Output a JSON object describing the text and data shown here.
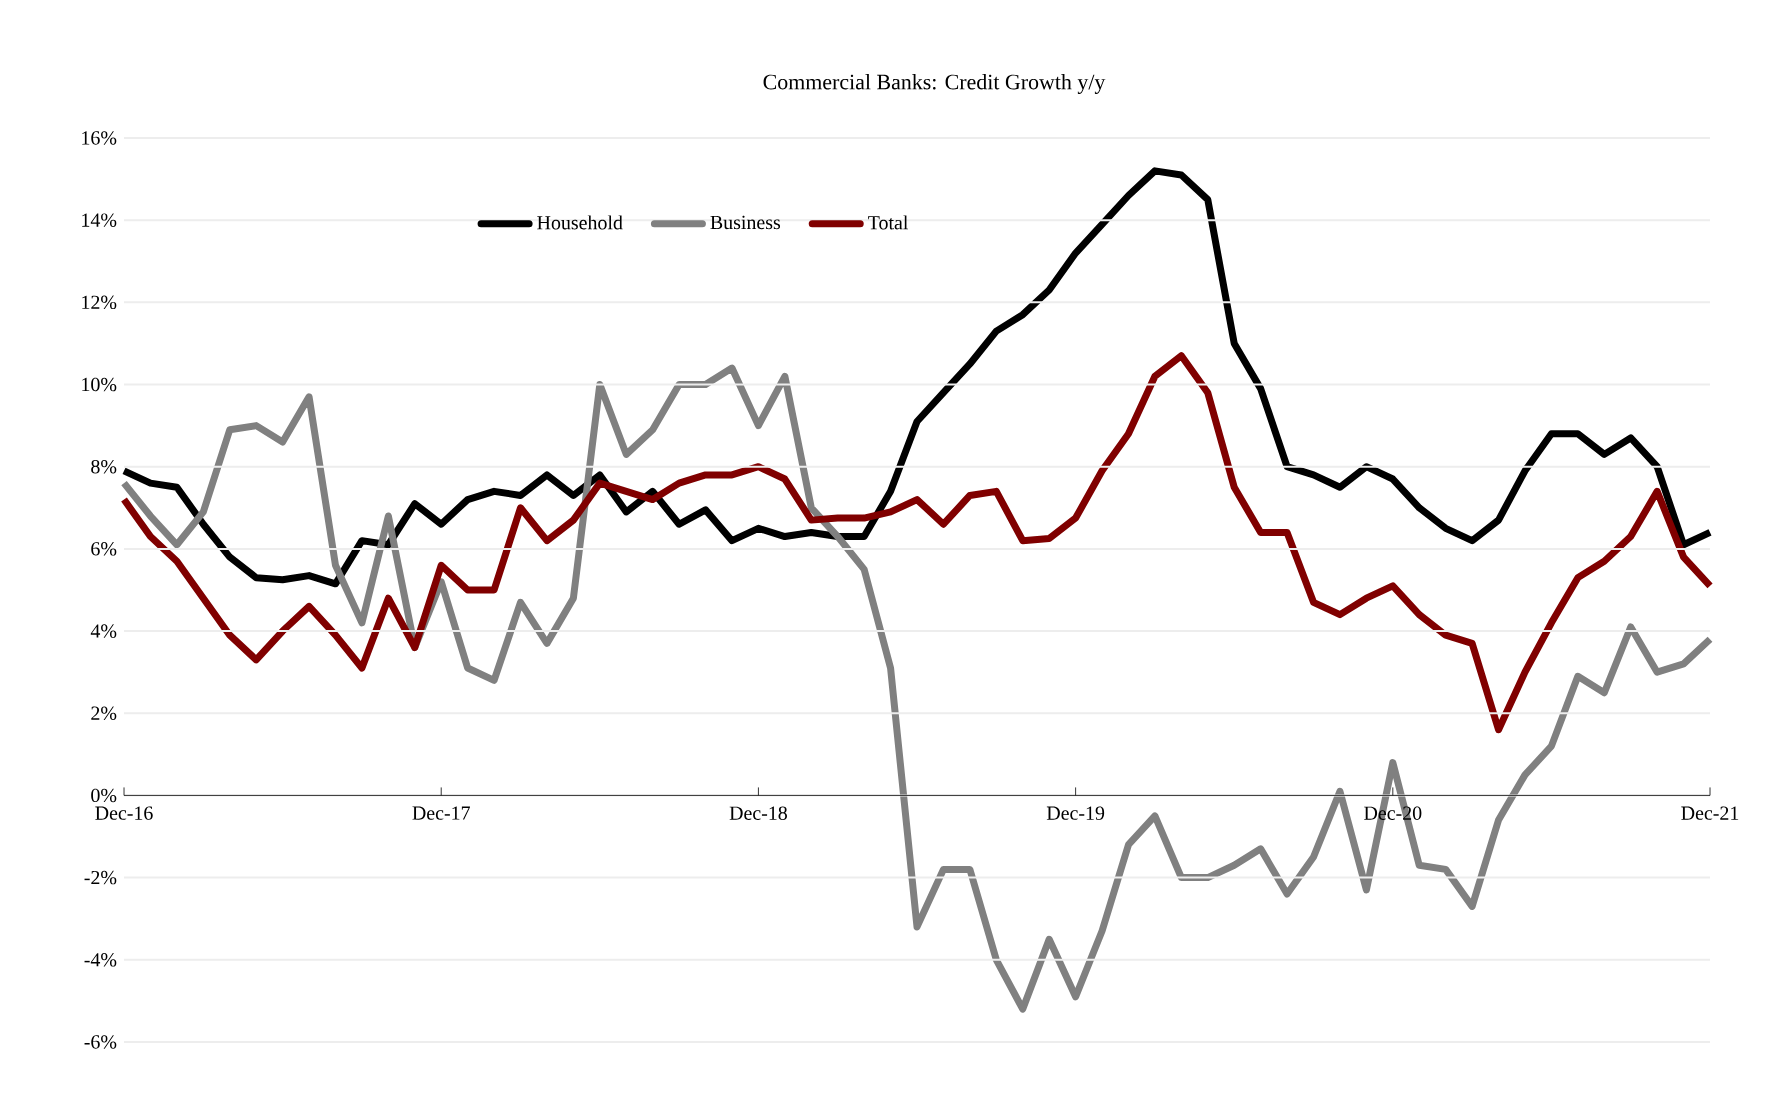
{
  "chart_data": {
    "type": "line",
    "title": "Commercial Banks: Credit Growth y/y",
    "x": [
      "2016-12",
      "2017-01",
      "2017-02",
      "2017-03",
      "2017-04",
      "2017-05",
      "2017-06",
      "2017-07",
      "2017-08",
      "2017-09",
      "2017-10",
      "2017-11",
      "2017-12",
      "2018-01",
      "2018-02",
      "2018-03",
      "2018-04",
      "2018-05",
      "2018-06",
      "2018-07",
      "2018-08",
      "2018-09",
      "2018-10",
      "2018-11",
      "2018-12",
      "2019-01",
      "2019-02",
      "2019-03",
      "2019-04",
      "2019-05",
      "2019-06",
      "2019-07",
      "2019-08",
      "2019-09",
      "2019-10",
      "2019-11",
      "2019-12",
      "2020-01",
      "2020-02",
      "2020-03",
      "2020-04",
      "2020-05",
      "2020-06",
      "2020-07",
      "2020-08",
      "2020-09",
      "2020-10",
      "2020-11",
      "2020-12",
      "2021-01",
      "2021-02",
      "2021-03",
      "2021-04",
      "2021-05",
      "2021-06",
      "2021-07",
      "2021-08",
      "2021-09",
      "2021-10",
      "2021-11",
      "2021-12"
    ],
    "series": [
      {
        "name": "Household",
        "color": "#000000",
        "values": [
          7.9,
          7.6,
          7.5,
          6.6,
          5.8,
          5.3,
          5.25,
          5.35,
          5.15,
          6.2,
          6.1,
          7.1,
          6.6,
          7.2,
          7.4,
          7.3,
          7.8,
          7.3,
          7.8,
          6.9,
          7.4,
          6.6,
          6.95,
          6.2,
          6.5,
          6.3,
          6.4,
          6.3,
          6.3,
          7.4,
          9.1,
          9.8,
          10.5,
          11.3,
          11.7,
          12.3,
          13.2,
          13.9,
          14.6,
          15.2,
          15.1,
          14.5,
          11.0,
          9.9,
          8.0,
          7.8,
          7.5,
          8.0,
          7.7,
          7.0,
          6.5,
          6.2,
          6.7,
          7.9,
          8.8,
          8.8,
          8.3,
          8.7,
          8.0,
          6.1,
          6.4
        ]
      },
      {
        "name": "Business",
        "color": "#808080",
        "values": [
          7.6,
          6.8,
          6.1,
          6.9,
          8.9,
          9.0,
          8.6,
          9.7,
          5.6,
          4.2,
          6.8,
          3.6,
          5.2,
          3.1,
          2.8,
          4.7,
          3.7,
          4.8,
          10.0,
          8.3,
          8.9,
          10.0,
          10.0,
          10.4,
          9.0,
          10.2,
          7.0,
          6.3,
          5.5,
          3.1,
          -3.2,
          -1.8,
          -1.8,
          -4.0,
          -5.2,
          -3.5,
          -4.9,
          -3.3,
          -1.2,
          -0.5,
          -2.0,
          -2.0,
          -1.7,
          -1.3,
          -2.4,
          -1.5,
          0.1,
          -2.3,
          0.8,
          -1.7,
          -1.8,
          -2.7,
          -0.6,
          0.5,
          1.2,
          2.9,
          2.5,
          4.1,
          3.0,
          3.2,
          3.8
        ]
      },
      {
        "name": "Total",
        "color": "#800000",
        "values": [
          7.2,
          6.3,
          5.7,
          4.8,
          3.9,
          3.3,
          4.0,
          4.6,
          3.9,
          3.1,
          4.8,
          3.6,
          5.6,
          5.0,
          5.0,
          7.0,
          6.2,
          6.7,
          7.6,
          7.4,
          7.2,
          7.6,
          7.8,
          7.8,
          8.0,
          7.7,
          6.7,
          6.75,
          6.75,
          6.9,
          7.2,
          6.6,
          7.3,
          7.4,
          6.2,
          6.25,
          6.75,
          7.9,
          8.8,
          10.2,
          10.7,
          9.8,
          7.5,
          6.4,
          6.4,
          4.7,
          4.4,
          4.8,
          5.1,
          4.4,
          3.9,
          3.7,
          1.6,
          3.0,
          4.2,
          5.3,
          5.7,
          6.3,
          7.4,
          5.8,
          5.1
        ]
      }
    ],
    "xlim": [
      "2016-12",
      "2021-12"
    ],
    "xticks": [
      {
        "value": "2016-12",
        "label": "Dec-16"
      },
      {
        "value": "2017-12",
        "label": "Dec-17"
      },
      {
        "value": "2018-12",
        "label": "Dec-18"
      },
      {
        "value": "2019-12",
        "label": "Dec-19"
      },
      {
        "value": "2020-12",
        "label": "Dec-20"
      },
      {
        "value": "2021-12",
        "label": "Dec-21"
      }
    ],
    "ylim": [
      -6,
      16
    ],
    "yticks": [
      {
        "value": -6,
        "label": "-6%"
      },
      {
        "value": -4,
        "label": "-4%"
      },
      {
        "value": -2,
        "label": "-2%"
      },
      {
        "value": 0,
        "label": "0%"
      },
      {
        "value": 2,
        "label": "2%"
      },
      {
        "value": 4,
        "label": "4%"
      },
      {
        "value": 6,
        "label": "6%"
      },
      {
        "value": 8,
        "label": "8%"
      },
      {
        "value": 10,
        "label": "10%"
      },
      {
        "value": 12,
        "label": "12%"
      },
      {
        "value": 14,
        "label": "14%"
      },
      {
        "value": 16,
        "label": "16%"
      }
    ],
    "grid": "y",
    "legend": "top",
    "marker": "none",
    "line_style": "solid"
  }
}
